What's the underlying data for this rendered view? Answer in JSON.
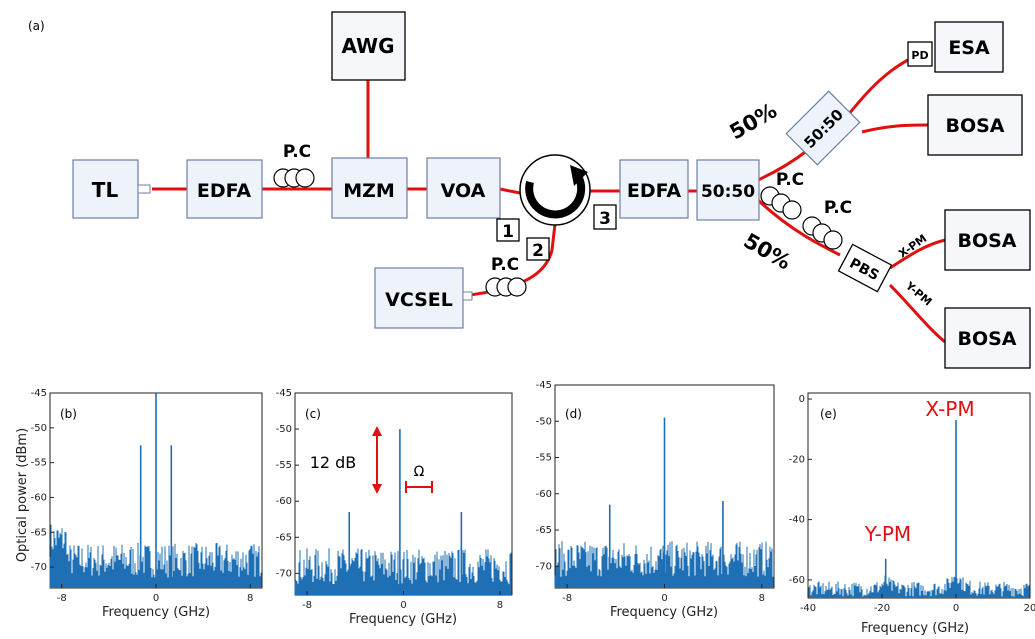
{
  "diagram": {
    "panel_label": "(a)",
    "blocks": {
      "tl": "TL",
      "edfa1": "EDFA",
      "mzm": "MZM",
      "awg": "AWG",
      "voa": "VOA",
      "vcsel": "VCSEL",
      "edfa2": "EDFA",
      "coupler1": "50:50",
      "coupler2": "50:50",
      "pd": "PD",
      "esa": "ESA",
      "bosa1": "BOSA",
      "pbs": "PBS",
      "bosa2": "BOSA",
      "bosa3": "BOSA"
    },
    "labels": {
      "pc1": "P.C",
      "pc2": "P.C",
      "pc3": "P.C",
      "pc4": "P.C",
      "port1": "1",
      "port2": "2",
      "port3": "3",
      "split_top": "50%",
      "split_bottom": "50%",
      "xpm": "X-PM",
      "ypm": "Y-PM"
    },
    "colors": {
      "fiber": "#e01010",
      "spectrum": "#1f6fb4",
      "annotation": "#e01010"
    }
  },
  "chart_data": [
    {
      "type": "line",
      "panel_label": "(b)",
      "xlabel": "Frequency (GHz)",
      "ylabel": "Optical power (dBm)",
      "xlim": [
        -9,
        9
      ],
      "ylim": [
        -73,
        -45
      ],
      "xticks": [
        "-8",
        "0",
        "8"
      ],
      "yticks": [
        "-45",
        "-50",
        "-55",
        "-60",
        "-65",
        "-70"
      ],
      "noise_floor_dbm": -70,
      "peaks": [
        {
          "x": -1.3,
          "y": -52.5
        },
        {
          "x": 0,
          "y": -45
        },
        {
          "x": 1.3,
          "y": -52.5
        }
      ]
    },
    {
      "type": "line",
      "panel_label": "(c)",
      "xlabel": "Frequency (GHz)",
      "ylabel": "",
      "xlim": [
        -9,
        9
      ],
      "ylim": [
        -73,
        -45
      ],
      "xticks": [
        "-8",
        "0",
        "8"
      ],
      "yticks": [
        "-45",
        "-50",
        "-55",
        "-60",
        "-65",
        "-70"
      ],
      "noise_floor_dbm": -70,
      "peaks": [
        {
          "x": -4.5,
          "y": -61.5
        },
        {
          "x": -0.3,
          "y": -50
        },
        {
          "x": 4.8,
          "y": -61.5
        }
      ],
      "annotations": {
        "power_diff": "12 dB",
        "spacing": "Ω"
      }
    },
    {
      "type": "line",
      "panel_label": "(d)",
      "xlabel": "Frequency (GHz)",
      "ylabel": "",
      "xlim": [
        -9,
        9
      ],
      "ylim": [
        -73,
        -45
      ],
      "xticks": [
        "-8",
        "0",
        "8"
      ],
      "yticks": [
        "-45",
        "-50",
        "-55",
        "-60",
        "-65",
        "-70"
      ],
      "noise_floor_dbm": -70,
      "peaks": [
        {
          "x": -4.5,
          "y": -61.5
        },
        {
          "x": 0,
          "y": -49.5
        },
        {
          "x": 4.8,
          "y": -61
        }
      ]
    },
    {
      "type": "line",
      "panel_label": "(e)",
      "xlabel": "Frequency (GHz)",
      "ylabel": "",
      "xlim": [
        -40,
        20
      ],
      "ylim": [
        -66,
        2
      ],
      "xticks": [
        "-40",
        "-20",
        "0",
        "20"
      ],
      "yticks": [
        "0",
        "-20",
        "-40",
        "-60"
      ],
      "noise_floor_dbm": -64,
      "peaks": [
        {
          "x": -19,
          "y": -53
        },
        {
          "x": 0,
          "y": -7
        }
      ],
      "peak_labels": {
        "main": "X-PM",
        "side": "Y-PM"
      }
    }
  ]
}
